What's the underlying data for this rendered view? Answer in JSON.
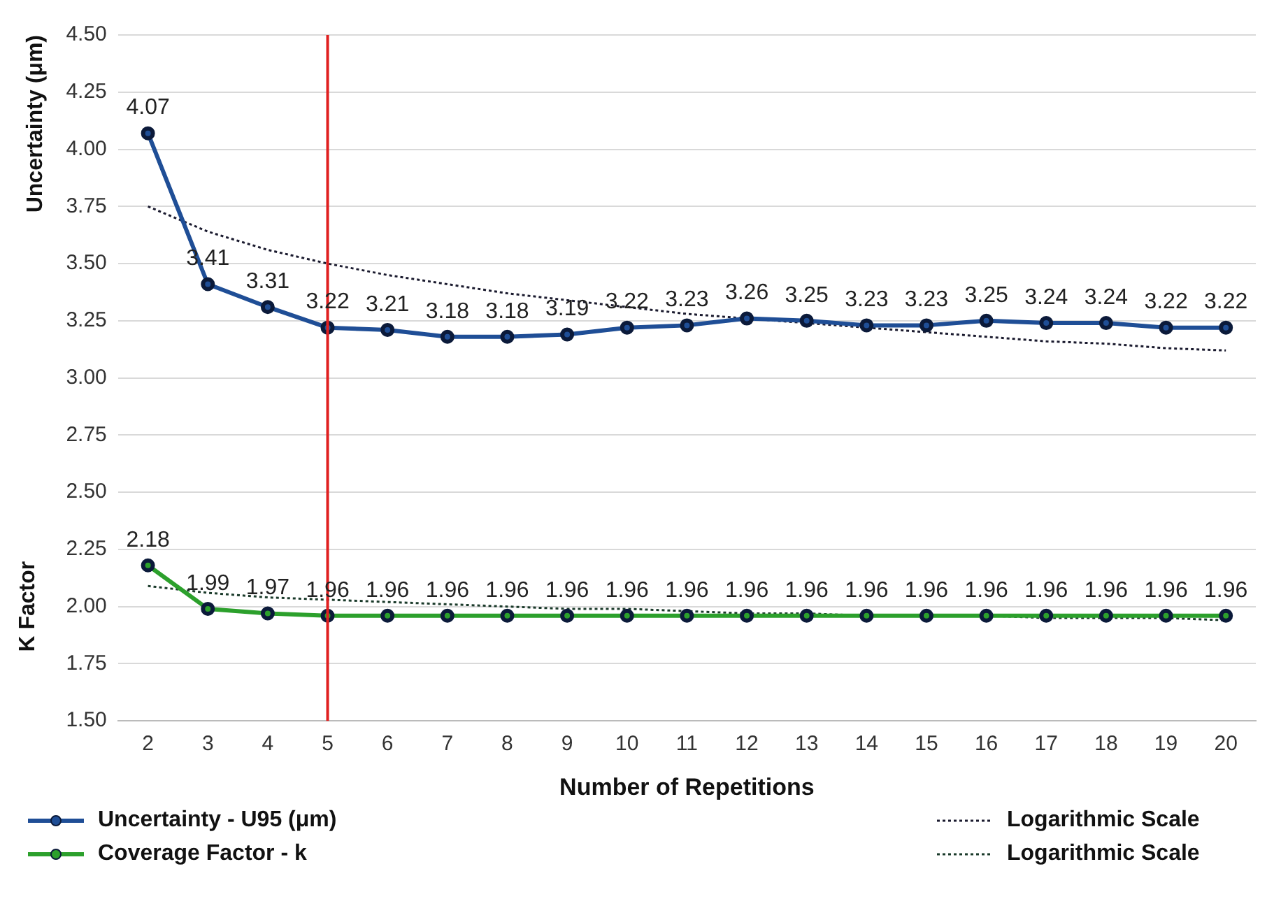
{
  "chart_data": {
    "type": "line",
    "xlabel": "Number of Repetitions",
    "ylabel": "Uncertainty (μm)",
    "annotations": [
      "K Factor"
    ],
    "categories": [
      "2",
      "3",
      "4",
      "5",
      "6",
      "7",
      "8",
      "9",
      "10",
      "11",
      "12",
      "13",
      "14",
      "15",
      "16",
      "17",
      "18",
      "19",
      "20"
    ],
    "ylim": [
      1.5,
      4.5
    ],
    "yticks": [
      {
        "value": 1.5,
        "label": "1.50"
      },
      1.75,
      {
        "value": 2,
        "label": "2.00"
      },
      2.25,
      {
        "value": 2.5,
        "label": "2.50"
      },
      2.75,
      {
        "value": 3,
        "label": "3.00"
      },
      3.25,
      {
        "value": 3.5,
        "label": "3.50"
      },
      3.75,
      {
        "value": 4,
        "label": "4.00"
      },
      4.25,
      {
        "value": 4.5,
        "label": "4.50"
      }
    ],
    "grid": "y",
    "legend": "bottom",
    "ref_lines": [
      {
        "axis": "x",
        "value": "5",
        "color": "#e02020"
      }
    ],
    "series": [
      {
        "name": "Uncertainty - U95 (μm)",
        "color": "#1f4e96",
        "marker": "circle",
        "line_style": "solid",
        "values": [
          4.07,
          3.41,
          3.31,
          3.22,
          3.21,
          3.18,
          3.18,
          3.19,
          3.22,
          3.23,
          3.26,
          3.25,
          3.23,
          3.23,
          3.25,
          3.24,
          3.24,
          3.22,
          3.22
        ],
        "value_labels": [
          "4.07",
          "3.41",
          "3.31",
          "3.22",
          "3.21",
          "3.18",
          "3.18",
          "3.19",
          "3.22",
          "3.23",
          "3.26",
          "3.25",
          "3.23",
          "3.23",
          "3.25",
          "3.24",
          "3.24",
          "3.22",
          "3.22"
        ]
      },
      {
        "name": "Logarithmic Scale",
        "color": "#1a1a2e",
        "marker": "none",
        "line_style": "dotted",
        "values": [
          3.75,
          3.64,
          3.56,
          3.5,
          3.45,
          3.41,
          3.37,
          3.34,
          3.31,
          3.28,
          3.26,
          3.24,
          3.22,
          3.2,
          3.18,
          3.16,
          3.15,
          3.13,
          3.12
        ]
      },
      {
        "name": "Coverage Factor - k",
        "color": "#2ca02c",
        "marker": "circle",
        "line_style": "solid",
        "values": [
          2.18,
          1.99,
          1.97,
          1.96,
          1.96,
          1.96,
          1.96,
          1.96,
          1.96,
          1.96,
          1.96,
          1.96,
          1.96,
          1.96,
          1.96,
          1.96,
          1.96,
          1.96,
          1.96
        ],
        "value_labels": [
          "2.18",
          "1.99",
          "1.97",
          "1.96",
          "1.96",
          "1.96",
          "1.96",
          "1.96",
          "1.96",
          "1.96",
          "1.96",
          "1.96",
          "1.96",
          "1.96",
          "1.96",
          "1.96",
          "1.96",
          "1.96",
          "1.96"
        ]
      },
      {
        "name": "Logarithmic Scale",
        "color": "#1a3a2a",
        "marker": "none",
        "line_style": "dotted",
        "values": [
          2.09,
          2.06,
          2.04,
          2.03,
          2.02,
          2.01,
          2.0,
          1.99,
          1.99,
          1.98,
          1.97,
          1.97,
          1.96,
          1.96,
          1.96,
          1.95,
          1.95,
          1.95,
          1.94
        ]
      }
    ]
  }
}
